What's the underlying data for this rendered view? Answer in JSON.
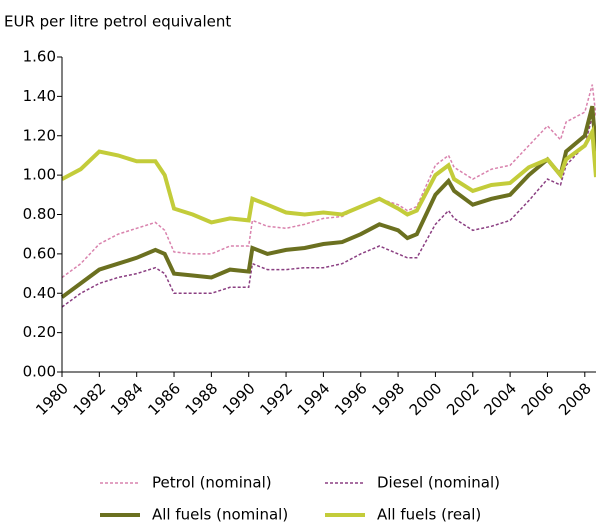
{
  "chart_data": {
    "type": "line",
    "y_label": "EUR per litre petrol equivalent",
    "x": [
      1980,
      1981,
      1982,
      1983,
      1984,
      1985,
      1985.5,
      1986,
      1987,
      1988,
      1989,
      1990,
      1990.2,
      1991,
      1992,
      1993,
      1994,
      1995,
      1996,
      1997,
      1998,
      1998.5,
      1999,
      2000,
      2000.7,
      2001,
      2002,
      2003,
      2004,
      2005,
      2006,
      2006.7,
      2007,
      2008,
      2008.4,
      2008.6
    ],
    "series": [
      {
        "name": "Petrol (nominal)",
        "color": "#d982ad",
        "style": "dashed",
        "width": 1.5,
        "values": [
          0.48,
          0.55,
          0.65,
          0.7,
          0.73,
          0.76,
          0.72,
          0.61,
          0.6,
          0.6,
          0.64,
          0.64,
          0.77,
          0.74,
          0.73,
          0.75,
          0.78,
          0.79,
          0.84,
          0.88,
          0.85,
          0.82,
          0.84,
          1.05,
          1.1,
          1.04,
          0.98,
          1.03,
          1.05,
          1.15,
          1.25,
          1.18,
          1.27,
          1.32,
          1.46,
          1.3
        ]
      },
      {
        "name": "Diesel (nominal)",
        "color": "#8b3f82",
        "style": "dashed",
        "width": 1.5,
        "values": [
          0.33,
          0.4,
          0.45,
          0.48,
          0.5,
          0.53,
          0.5,
          0.4,
          0.4,
          0.4,
          0.43,
          0.43,
          0.55,
          0.52,
          0.52,
          0.53,
          0.53,
          0.55,
          0.6,
          0.64,
          0.6,
          0.58,
          0.58,
          0.75,
          0.82,
          0.78,
          0.72,
          0.74,
          0.77,
          0.87,
          0.98,
          0.95,
          1.05,
          1.15,
          1.3,
          1.05
        ]
      },
      {
        "name": "All fuels (nominal)",
        "color": "#6b7020",
        "style": "solid",
        "width": 4,
        "values": [
          0.38,
          0.45,
          0.52,
          0.55,
          0.58,
          0.62,
          0.6,
          0.5,
          0.49,
          0.48,
          0.52,
          0.51,
          0.63,
          0.6,
          0.62,
          0.63,
          0.65,
          0.66,
          0.7,
          0.75,
          0.72,
          0.68,
          0.7,
          0.9,
          0.97,
          0.92,
          0.85,
          0.88,
          0.9,
          1.0,
          1.08,
          1.0,
          1.12,
          1.2,
          1.35,
          1.12
        ]
      },
      {
        "name": "All fuels (real)",
        "color": "#c3cc3a",
        "style": "solid",
        "width": 4,
        "values": [
          0.98,
          1.03,
          1.12,
          1.1,
          1.07,
          1.07,
          1.0,
          0.83,
          0.8,
          0.76,
          0.78,
          0.77,
          0.88,
          0.85,
          0.81,
          0.8,
          0.81,
          0.8,
          0.84,
          0.88,
          0.83,
          0.8,
          0.82,
          1.0,
          1.05,
          0.98,
          0.92,
          0.95,
          0.96,
          1.04,
          1.08,
          1.0,
          1.08,
          1.15,
          1.22,
          0.99
        ]
      }
    ],
    "xlim": [
      1980,
      2008.6
    ],
    "xticks": [
      1980,
      1982,
      1984,
      1986,
      1988,
      1990,
      1992,
      1994,
      1996,
      1998,
      2000,
      2002,
      2004,
      2006,
      2008
    ],
    "ylim": [
      0,
      1.6
    ],
    "yticks": [
      {
        "value": 0,
        "label": "0.00"
      },
      {
        "value": 0.2,
        "label": "0.20"
      },
      {
        "value": 0.4,
        "label": "0.40"
      },
      {
        "value": 0.6,
        "label": "0.60"
      },
      {
        "value": 0.8,
        "label": "0.80"
      },
      {
        "value": 1,
        "label": "1.00"
      },
      {
        "value": 1.2,
        "label": "1.20"
      },
      {
        "value": 1.4,
        "label": "1.40"
      },
      {
        "value": 1.6,
        "label": "1.60"
      }
    ],
    "grid": false,
    "legend": "bottom"
  }
}
